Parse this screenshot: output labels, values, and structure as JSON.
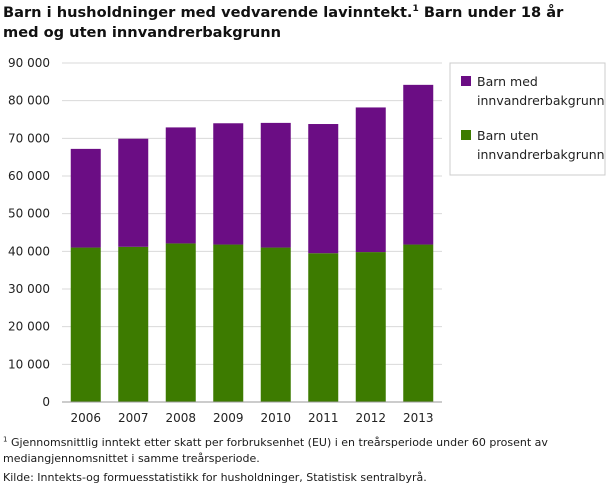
{
  "title_main": "Barn i husholdninger med vedvarende lavinntekt.",
  "title_sup": "1",
  "title_rest": " Barn under 18 år med og uten innvandrerbakgrunn",
  "footnote": {
    "marker": "1",
    "text": " Gjennomsnittlig inntekt etter skatt per forbruksenhet (EU) i en treårsperiode under 60 prosent av mediangjennomsnittet i samme treårsperiode."
  },
  "source": "Kilde: Inntekts-og formuesstatistikk for husholdninger,  Statistisk sentralbyrå.",
  "chart_data": {
    "type": "bar",
    "stacked": true,
    "title": "Barn i husholdninger med vedvarende lavinntekt. Barn under 18 år med og uten innvandrerbakgrunn",
    "categories": [
      "2006",
      "2007",
      "2008",
      "2009",
      "2010",
      "2011",
      "2012",
      "2013"
    ],
    "series": [
      {
        "name": "Barn uten innvandrerbakgrunn",
        "legend_lines": [
          "Barn uten",
          "innvandrerbakgrunn"
        ],
        "color": "#3d7b00",
        "values": [
          41000,
          41200,
          42100,
          41800,
          41000,
          39500,
          39800,
          41800
        ]
      },
      {
        "name": "Barn med innvandrerbakgrunn",
        "legend_lines": [
          "Barn med",
          "innvandrerbakgrunn"
        ],
        "color": "#6b0d84",
        "values": [
          26200,
          28700,
          30800,
          32200,
          33100,
          34300,
          38400,
          42400
        ]
      }
    ],
    "ylim": [
      0,
      90000
    ],
    "yticks": [
      0,
      10000,
      20000,
      30000,
      40000,
      50000,
      60000,
      70000,
      80000,
      90000
    ],
    "ytick_labels": [
      "0",
      "10 000",
      "20 000",
      "30 000",
      "40 000",
      "50 000",
      "60 000",
      "70 000",
      "80 000",
      "90 000"
    ],
    "grid": true,
    "legend_position": "right",
    "colors": {
      "grid": "#d9d9d9",
      "axis": "#999999"
    }
  }
}
